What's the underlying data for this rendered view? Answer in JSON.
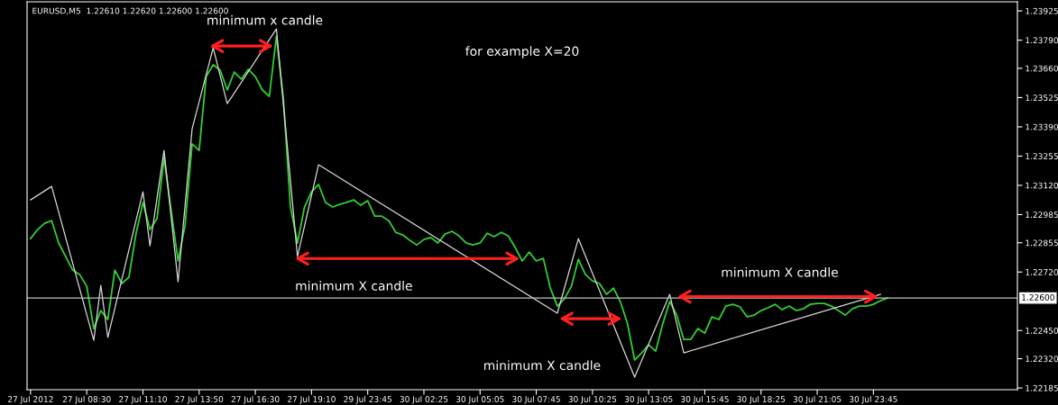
{
  "chart_data": {
    "type": "line",
    "title": "EURUSD,M5  1.22610 1.22620 1.22600 1.22600",
    "categories": [
      "27 Jul 2012",
      null,
      null,
      null,
      null,
      null,
      null,
      null,
      "27 Jul 08:30",
      null,
      null,
      null,
      null,
      null,
      null,
      null,
      "27 Jul 11:10",
      null,
      null,
      null,
      null,
      null,
      null,
      null,
      "27 Jul 13:50",
      null,
      null,
      null,
      null,
      null,
      null,
      null,
      "27 Jul 16:30",
      null,
      null,
      null,
      null,
      null,
      null,
      null,
      "27 Jul 19:10",
      null,
      null,
      null,
      null,
      null,
      null,
      null,
      "29 Jul 23:45",
      null,
      null,
      null,
      null,
      null,
      null,
      null,
      "30 Jul 02:25",
      null,
      null,
      null,
      null,
      null,
      null,
      null,
      "30 Jul 05:05",
      null,
      null,
      null,
      null,
      null,
      null,
      null,
      "30 Jul 07:45",
      null,
      null,
      null,
      null,
      null,
      null,
      null,
      "30 Jul 10:25",
      null,
      null,
      null,
      null,
      null,
      null,
      null,
      "30 Jul 13:05",
      null,
      null,
      null,
      null,
      null,
      null,
      null,
      "30 Jul 15:45",
      null,
      null,
      null,
      null,
      null,
      null,
      null,
      "30 Jul 18:25",
      null,
      null,
      null,
      null,
      null,
      null,
      null,
      "30 Jul 21:05",
      null,
      null,
      null,
      null,
      null,
      null,
      null,
      "30 Jul 23:45",
      null,
      null,
      null,
      null,
      null,
      null,
      null,
      null,
      null,
      null,
      null,
      null,
      null,
      null,
      null,
      null,
      null,
      null,
      null,
      null
    ],
    "series": [
      {
        "color": "#33cc33",
        "values": [
          1.22874,
          1.22916,
          1.22945,
          1.22957,
          1.22854,
          1.22791,
          1.22729,
          1.22708,
          1.22654,
          1.22459,
          1.22542,
          1.22501,
          1.22729,
          1.22667,
          1.22696,
          1.22895,
          1.23041,
          1.22916,
          1.22966,
          1.23248,
          1.23007,
          1.22771,
          1.22937,
          1.23311,
          1.23281,
          1.23622,
          1.23676,
          1.23651,
          1.2356,
          1.23643,
          1.2361,
          1.23655,
          1.23622,
          1.2356,
          1.23531,
          1.23809,
          1.23518,
          1.2302,
          1.22854,
          1.2302,
          1.2309,
          1.23124,
          1.23041,
          1.2302,
          1.23032,
          1.23041,
          1.23053,
          1.23028,
          1.23049,
          1.22978,
          1.22978,
          1.22957,
          1.22903,
          1.22891,
          1.22866,
          1.22845,
          1.2287,
          1.22879,
          1.22854,
          1.22895,
          1.22908,
          1.22887,
          1.22854,
          1.22845,
          1.22854,
          1.22899,
          1.22883,
          1.22903,
          1.22887,
          1.22833,
          1.22771,
          1.22812,
          1.22771,
          1.22783,
          1.22646,
          1.22563,
          1.22596,
          1.22654,
          1.22779,
          1.22708,
          1.22679,
          1.22667,
          1.22617,
          1.22646,
          1.2258,
          1.2248,
          1.22314,
          1.22347,
          1.22384,
          1.22355,
          1.2248,
          1.22584,
          1.22521,
          1.22409,
          1.22409,
          1.22459,
          1.22438,
          1.22513,
          1.22501,
          1.22563,
          1.22571,
          1.22559,
          1.22513,
          1.22521,
          1.22542,
          1.22555,
          1.22571,
          1.22546,
          1.22563,
          1.22542,
          1.2255,
          1.22571,
          1.22575,
          1.22575,
          1.22563,
          1.22542,
          1.22521,
          1.2255,
          1.22563,
          1.22563,
          1.22571,
          1.22588,
          1.226,
          null,
          null,
          null,
          null,
          null,
          null,
          null,
          null,
          null,
          null,
          null,
          null,
          null,
          null,
          null,
          null,
          null,
          null
        ]
      },
      {
        "color": "#d8d8d8",
        "values": [
          1.23053,
          null,
          null,
          1.23115,
          null,
          null,
          null,
          null,
          null,
          1.22405,
          1.22658,
          1.22418,
          null,
          null,
          null,
          null,
          1.2309,
          1.22841,
          null,
          1.23281,
          null,
          1.22675,
          null,
          1.23381,
          null,
          null,
          1.23755,
          null,
          1.23497,
          null,
          null,
          null,
          null,
          null,
          null,
          1.23842,
          null,
          null,
          1.22791,
          null,
          null,
          1.23215,
          null,
          null,
          null,
          null,
          null,
          null,
          null,
          null,
          null,
          null,
          null,
          null,
          null,
          null,
          null,
          null,
          null,
          null,
          null,
          null,
          null,
          null,
          null,
          null,
          null,
          null,
          null,
          null,
          null,
          null,
          null,
          null,
          null,
          1.2253,
          null,
          null,
          1.22874,
          null,
          null,
          null,
          null,
          null,
          null,
          null,
          1.22235,
          null,
          null,
          null,
          null,
          1.22617,
          null,
          1.22347,
          null,
          null,
          null,
          null,
          null,
          null,
          null,
          null,
          null,
          null,
          null,
          null,
          null,
          null,
          null,
          null,
          null,
          null,
          null,
          null,
          null,
          null,
          null,
          null,
          null,
          null,
          null,
          1.22617,
          null,
          null,
          null,
          null,
          null,
          null,
          null,
          null,
          null,
          null,
          null,
          null,
          null,
          null,
          null,
          null,
          null,
          null,
          null
        ]
      }
    ],
    "ylim": [
      1.22177,
      1.23967
    ],
    "yticks": [
      {
        "value": 1.22185,
        "label": "1.22185"
      },
      {
        "value": 1.2232,
        "label": "1.22320"
      },
      {
        "value": 1.2245,
        "label": "1.22450"
      },
      {
        "value": 1.2272,
        "label": "1.22720"
      },
      {
        "value": 1.22855,
        "label": "1.22855"
      },
      {
        "value": 1.22985,
        "label": "1.22985"
      },
      {
        "value": 1.2312,
        "label": "1.23120"
      },
      {
        "value": 1.23255,
        "label": "1.23255"
      },
      {
        "value": 1.2339,
        "label": "1.23390"
      },
      {
        "value": 1.23525,
        "label": "1.23525"
      },
      {
        "value": 1.2366,
        "label": "1.23660"
      },
      {
        "value": 1.2379,
        "label": "1.23790"
      },
      {
        "value": 1.23925,
        "label": "1.23925"
      }
    ],
    "ref_lines": [
      {
        "axis": "y",
        "value": 1.226,
        "label": "1.22600",
        "color": "#c0c0c0"
      }
    ],
    "annotations": [
      "minimum x candle",
      "for example X=20",
      "minimum X candle",
      "minimum X candle",
      "minimum X candle"
    ],
    "grid": false,
    "legend": false,
    "marker": "none",
    "line_style": "solid"
  }
}
